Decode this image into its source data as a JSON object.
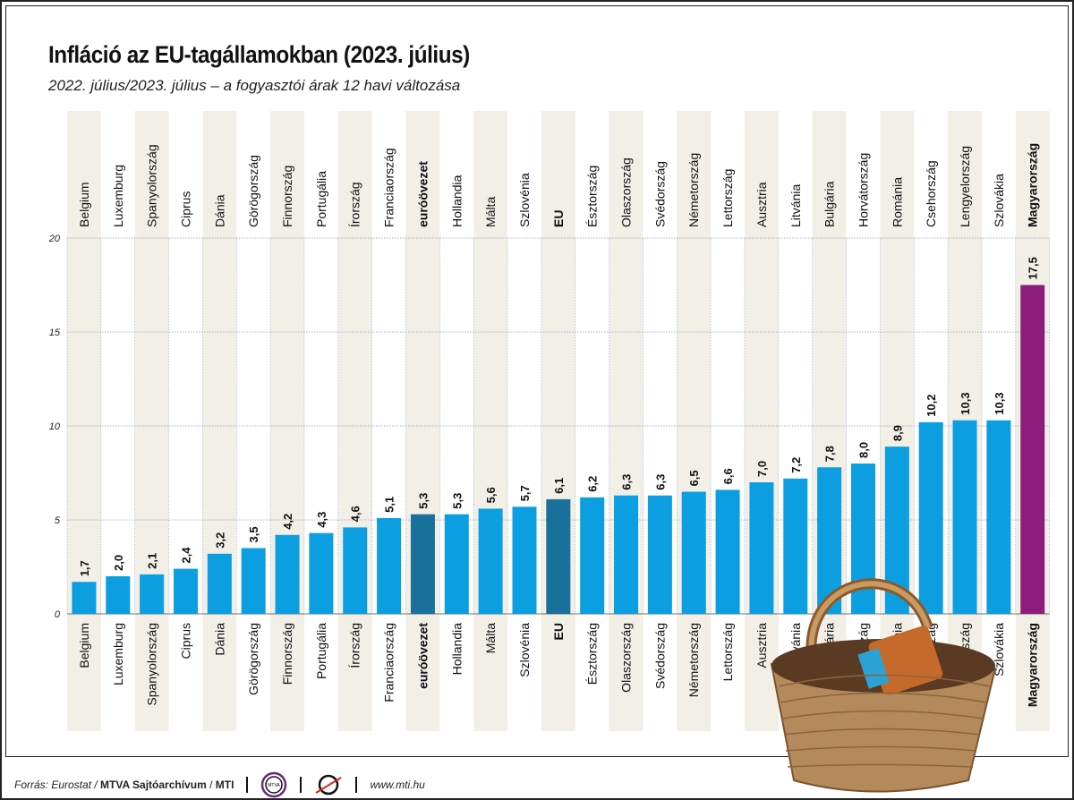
{
  "title": "Infláció az EU-tagállamokban (2023. július)",
  "subtitle": "2022. július/2023. július – a fogyasztói árak 12 havi változása",
  "footer": {
    "source_prefix": "Forrás: Eurostat /",
    "source_bold": "MTVA Sajtóarchívum",
    "source_sep": "/",
    "source_mti": "MTI",
    "logo_mtva": "MTVA",
    "url": "www.mti.hu"
  },
  "colors": {
    "bar": "#0b9ee0",
    "aggregate": "#19709a",
    "highlight": "#8c1d7c",
    "band": "#f1efe6",
    "grid": "#8aa0c8"
  },
  "chart_data": {
    "type": "bar",
    "categories": [
      "Belgium",
      "Luxemburg",
      "Spanyolország",
      "Ciprus",
      "Dánia",
      "Görögország",
      "Finnország",
      "Portugália",
      "Írország",
      "Franciaország",
      "euróövezet",
      "Hollandia",
      "Málta",
      "Szlovénia",
      "EU",
      "Észtország",
      "Olaszország",
      "Svédország",
      "Németország",
      "Lettország",
      "Ausztria",
      "Litvánia",
      "Bulgária",
      "Horvátország",
      "Románia",
      "Csehország",
      "Lengyelország",
      "Szlovákia",
      "Magyarország"
    ],
    "values": [
      1.7,
      2.0,
      2.1,
      2.4,
      3.2,
      3.5,
      4.2,
      4.3,
      4.6,
      5.1,
      5.3,
      5.3,
      5.6,
      5.7,
      6.1,
      6.2,
      6.3,
      6.3,
      6.5,
      6.6,
      7.0,
      7.2,
      7.8,
      8.0,
      8.9,
      10.2,
      10.3,
      10.3,
      17.5
    ],
    "value_labels": [
      "1,7",
      "2,0",
      "2,1",
      "2,4",
      "3,2",
      "3,5",
      "4,2",
      "4,3",
      "4,6",
      "5,1",
      "5,3",
      "5,3",
      "5,6",
      "5,7",
      "6,1",
      "6,2",
      "6,3",
      "6,3",
      "6,5",
      "6,6",
      "7,0",
      "7,2",
      "7,8",
      "8,0",
      "8,9",
      "10,2",
      "10,3",
      "10,3",
      "17,5"
    ],
    "bold_categories": [
      "euróövezet",
      "EU",
      "Magyarország"
    ],
    "aggregate_categories": [
      "euróövezet",
      "EU"
    ],
    "highlight_category": "Magyarország",
    "yticks": [
      0,
      5,
      10,
      15,
      20
    ],
    "ylim": [
      0,
      20
    ],
    "grid": true
  }
}
